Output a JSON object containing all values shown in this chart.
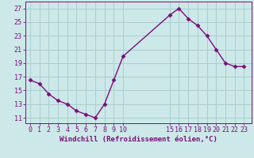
{
  "x": [
    0,
    1,
    2,
    3,
    4,
    5,
    6,
    7,
    8,
    9,
    10,
    15,
    16,
    17,
    18,
    19,
    20,
    21,
    22,
    23
  ],
  "y": [
    16.5,
    16.0,
    14.5,
    13.5,
    13.0,
    12.0,
    11.5,
    11.0,
    13.0,
    16.5,
    20.0,
    26.0,
    27.0,
    25.5,
    24.5,
    23.0,
    21.0,
    19.0,
    18.5,
    18.5
  ],
  "line_color": "#7b0e7b",
  "marker": "D",
  "marker_size": 2.5,
  "bg_color": "#cce8e8",
  "grid_color": "#aacece",
  "xlabel": "Windchill (Refroidissement éolien,°C)",
  "xlabel_fontsize": 6.5,
  "xticks": [
    0,
    1,
    2,
    3,
    4,
    5,
    6,
    7,
    8,
    9,
    10,
    15,
    16,
    17,
    18,
    19,
    20,
    21,
    22,
    23
  ],
  "yticks": [
    11,
    13,
    15,
    17,
    19,
    21,
    23,
    25,
    27
  ],
  "ylim": [
    10.2,
    28.0
  ],
  "xlim": [
    -0.5,
    23.8
  ],
  "tick_color": "#7b0e7b",
  "tick_fontsize": 6.0,
  "linewidth": 1.0
}
